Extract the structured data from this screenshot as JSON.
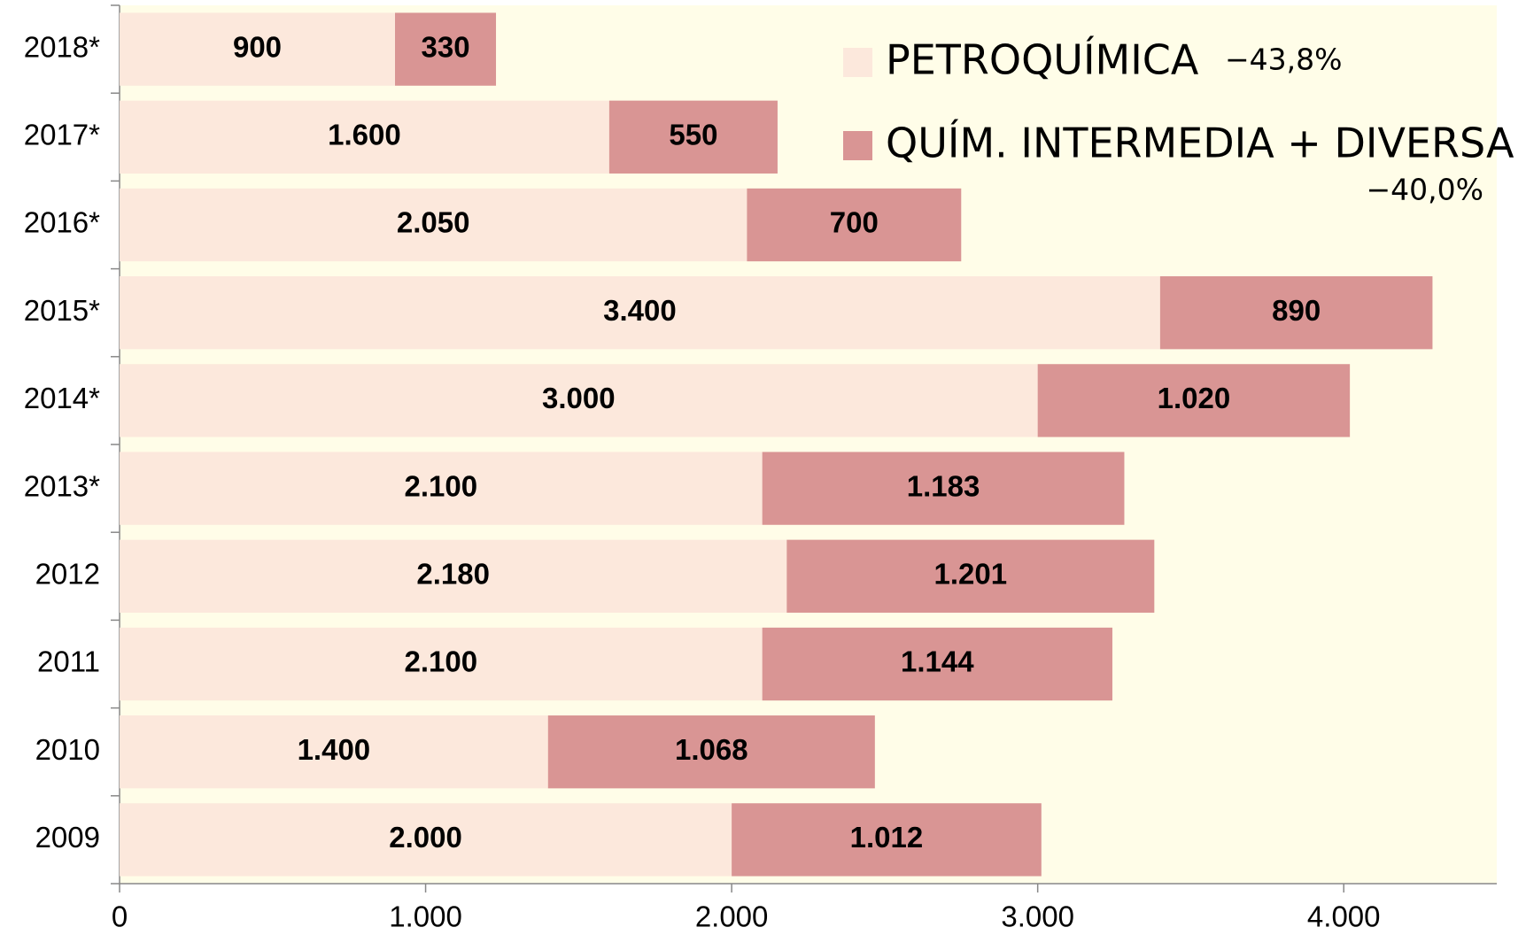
{
  "chart_data": {
    "type": "stacked-barh",
    "categories": [
      "2018*",
      "2017*",
      "2016*",
      "2015*",
      "2014*",
      "2013*",
      "2012",
      "2011",
      "2010",
      "2009"
    ],
    "series": [
      {
        "name": "PETROQUÍMICA",
        "color": "#fce8dc",
        "annotation": "−43,8%",
        "values": [
          900,
          1600,
          2050,
          3400,
          3000,
          2100,
          2180,
          2100,
          1400,
          2000
        ],
        "value_labels": [
          "900",
          "1.600",
          "2.050",
          "3.400",
          "3.000",
          "2.100",
          "2.180",
          "2.100",
          "1.400",
          "2.000"
        ]
      },
      {
        "name": "QUÍM. INTERMEDIA + DIVERSA",
        "color": "#d99594",
        "annotation": "−40,0%",
        "values": [
          330,
          550,
          700,
          890,
          1020,
          1183,
          1201,
          1144,
          1068,
          1012
        ],
        "value_labels": [
          "330",
          "550",
          "700",
          "890",
          "1.020",
          "1.183",
          "1.201",
          "1.144",
          "1.068",
          "1.012"
        ]
      }
    ],
    "xlim": [
      0,
      4500
    ],
    "xticks": [
      0,
      {
        "value": 1000,
        "label": "1.000"
      },
      {
        "value": 2000,
        "label": "2.000"
      },
      {
        "value": 3000,
        "label": "3.000"
      },
      {
        "value": 4000,
        "label": "4.000"
      }
    ],
    "plot_background": "#fffde8"
  }
}
